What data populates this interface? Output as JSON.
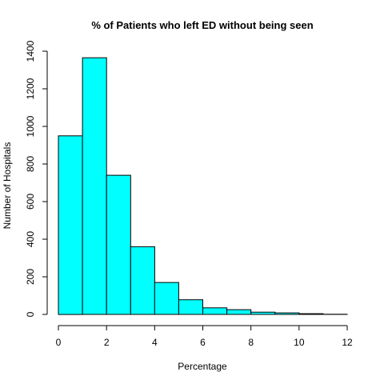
{
  "chart_data": {
    "type": "bar",
    "title": "% of Patients who left ED without being seen",
    "xlabel": "Percentage",
    "ylabel": "Number of Hospitals",
    "bins": [
      [
        0,
        1
      ],
      [
        1,
        2
      ],
      [
        2,
        3
      ],
      [
        3,
        4
      ],
      [
        4,
        5
      ],
      [
        5,
        6
      ],
      [
        6,
        7
      ],
      [
        7,
        8
      ],
      [
        8,
        9
      ],
      [
        9,
        10
      ],
      [
        10,
        11
      ],
      [
        11,
        12
      ]
    ],
    "values": [
      950,
      1365,
      740,
      360,
      170,
      78,
      35,
      25,
      12,
      8,
      4,
      1
    ],
    "xlim": [
      0,
      12
    ],
    "ylim": [
      0,
      1400
    ],
    "x_ticks": [
      0,
      2,
      4,
      6,
      8,
      10,
      12
    ],
    "y_ticks": [
      0,
      200,
      400,
      600,
      800,
      1000,
      1200,
      1400
    ],
    "bar_color": "#00ffff",
    "grid": false
  }
}
